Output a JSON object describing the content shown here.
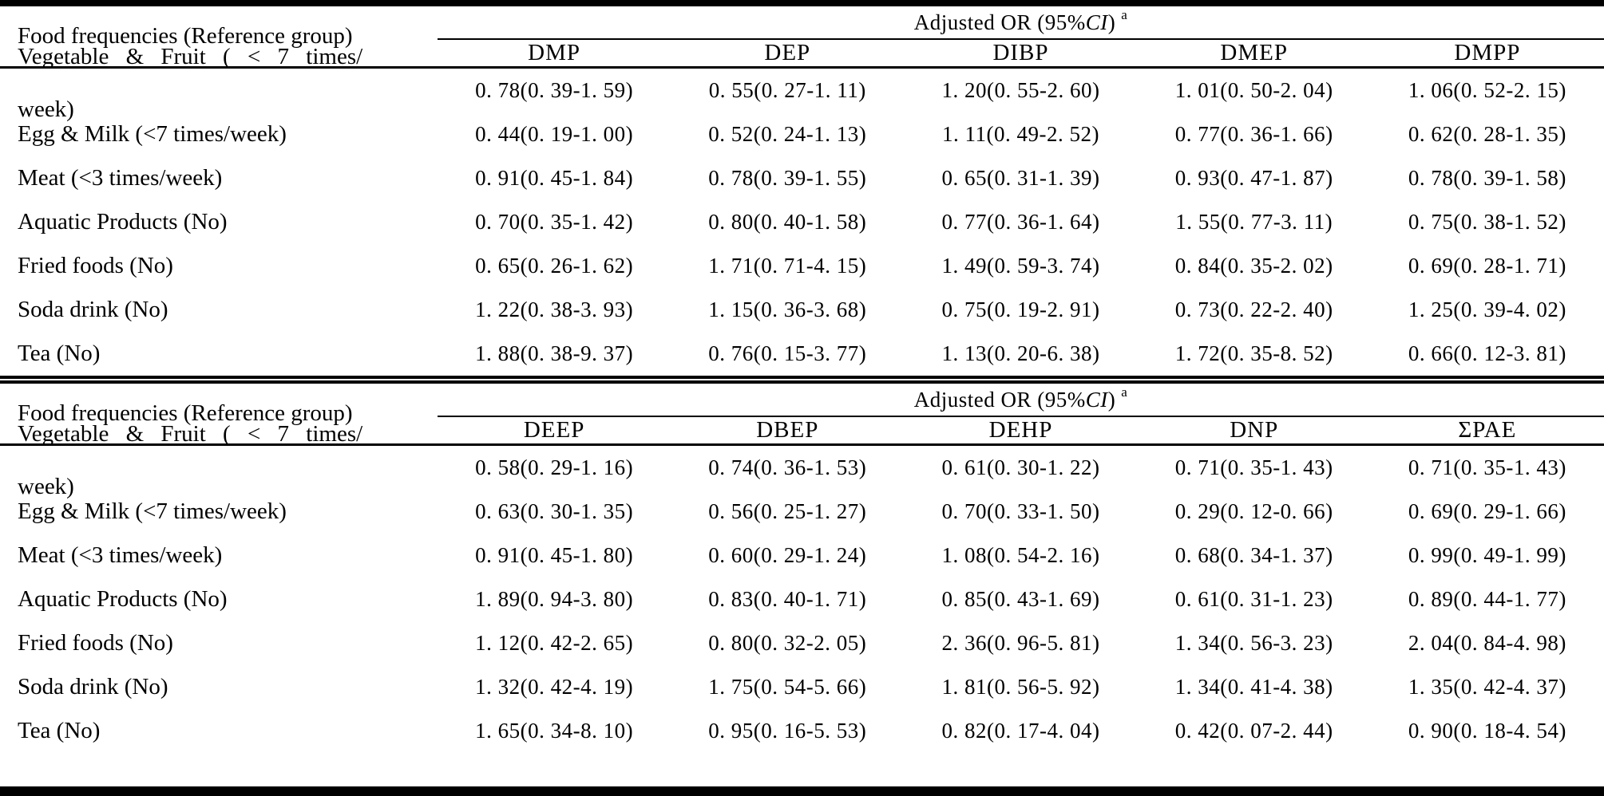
{
  "page": {
    "ink_color": "#000000",
    "paper_color": "#ffffff"
  },
  "tables": [
    {
      "corner_header": "Food frequencies (Reference group)",
      "spanner": {
        "prefix": "Adjusted OR (95%",
        "ci": "CI",
        "suffix": ")",
        "sup": "a"
      },
      "columns": [
        "DMP",
        "DEP",
        "DIBP",
        "DMEP",
        "DMPP"
      ],
      "rows": [
        {
          "label_line1": "Vegetable & Fruit ( < 7 times/",
          "label_line2": "week)",
          "values": [
            "0. 78(0. 39-1. 59)",
            "0. 55(0. 27-1. 11)",
            "1. 20(0. 55-2. 60)",
            "1. 01(0. 50-2. 04)",
            "1. 06(0. 52-2. 15)"
          ]
        },
        {
          "label": "Egg & Milk (<7 times/week)",
          "values": [
            "0. 44(0. 19-1. 00)",
            "0. 52(0. 24-1. 13)",
            "1. 11(0. 49-2. 52)",
            "0. 77(0. 36-1. 66)",
            "0. 62(0. 28-1. 35)"
          ]
        },
        {
          "label": "Meat (<3 times/week)",
          "values": [
            "0. 91(0. 45-1. 84)",
            "0. 78(0. 39-1. 55)",
            "0. 65(0. 31-1. 39)",
            "0. 93(0. 47-1. 87)",
            "0. 78(0. 39-1. 58)"
          ]
        },
        {
          "label": "Aquatic Products (No)",
          "values": [
            "0. 70(0. 35-1. 42)",
            "0. 80(0. 40-1. 58)",
            "0. 77(0. 36-1. 64)",
            "1. 55(0. 77-3. 11)",
            "0. 75(0. 38-1. 52)"
          ]
        },
        {
          "label": "Fried foods (No)",
          "values": [
            "0. 65(0. 26-1. 62)",
            "1. 71(0. 71-4. 15)",
            "1. 49(0. 59-3. 74)",
            "0. 84(0. 35-2. 02)",
            "0. 69(0. 28-1. 71)"
          ]
        },
        {
          "label": "Soda drink (No)",
          "values": [
            "1. 22(0. 38-3. 93)",
            "1. 15(0. 36-3. 68)",
            "0. 75(0. 19-2. 91)",
            "0. 73(0. 22-2. 40)",
            "1. 25(0. 39-4. 02)"
          ]
        },
        {
          "label": "Tea (No)",
          "values": [
            "1. 88(0. 38-9. 37)",
            "0. 76(0. 15-3. 77)",
            "1. 13(0. 20-6. 38)",
            "1. 72(0. 35-8. 52)",
            "0. 66(0. 12-3. 81)"
          ]
        }
      ]
    },
    {
      "corner_header": "Food frequencies (Reference group)",
      "spanner": {
        "prefix": "Adjusted OR (95%",
        "ci": "CI",
        "suffix": ")",
        "sup": "a"
      },
      "columns": [
        "DEEP",
        "DBEP",
        "DEHP",
        "DNP",
        "ΣPAE"
      ],
      "rows": [
        {
          "label_line1": "Vegetable & Fruit ( < 7 times/",
          "label_line2": "week)",
          "values": [
            "0. 58(0. 29-1. 16)",
            "0. 74(0. 36-1. 53)",
            "0. 61(0. 30-1. 22)",
            "0. 71(0. 35-1. 43)",
            "0. 71(0. 35-1. 43)"
          ]
        },
        {
          "label": "Egg & Milk (<7 times/week)",
          "values": [
            "0. 63(0. 30-1. 35)",
            "0. 56(0. 25-1. 27)",
            "0. 70(0. 33-1. 50)",
            "0. 29(0. 12-0. 66)",
            "0. 69(0. 29-1. 66)"
          ]
        },
        {
          "label": "Meat (<3 times/week)",
          "values": [
            "0. 91(0. 45-1. 80)",
            "0. 60(0. 29-1. 24)",
            "1. 08(0. 54-2. 16)",
            "0. 68(0. 34-1. 37)",
            "0. 99(0. 49-1. 99)"
          ]
        },
        {
          "label": "Aquatic Products (No)",
          "values": [
            "1. 89(0. 94-3. 80)",
            "0. 83(0. 40-1. 71)",
            "0. 85(0. 43-1. 69)",
            "0. 61(0. 31-1. 23)",
            "0. 89(0. 44-1. 77)"
          ]
        },
        {
          "label": "Fried foods (No)",
          "values": [
            "1. 12(0. 42-2. 65)",
            "0. 80(0. 32-2. 05)",
            "2. 36(0. 96-5. 81)",
            "1. 34(0. 56-3. 23)",
            "2. 04(0. 84-4. 98)"
          ]
        },
        {
          "label": "Soda drink (No)",
          "values": [
            "1. 32(0. 42-4. 19)",
            "1. 75(0. 54-5. 66)",
            "1. 81(0. 56-5. 92)",
            "1. 34(0. 41-4. 38)",
            "1. 35(0. 42-4. 37)"
          ]
        },
        {
          "label": "Tea (No)",
          "values": [
            "1. 65(0. 34-8. 10)",
            "0. 95(0. 16-5. 53)",
            "0. 82(0. 17-4. 04)",
            "0. 42(0. 07-2. 44)",
            "0. 90(0. 18-4. 54)"
          ]
        }
      ]
    }
  ]
}
